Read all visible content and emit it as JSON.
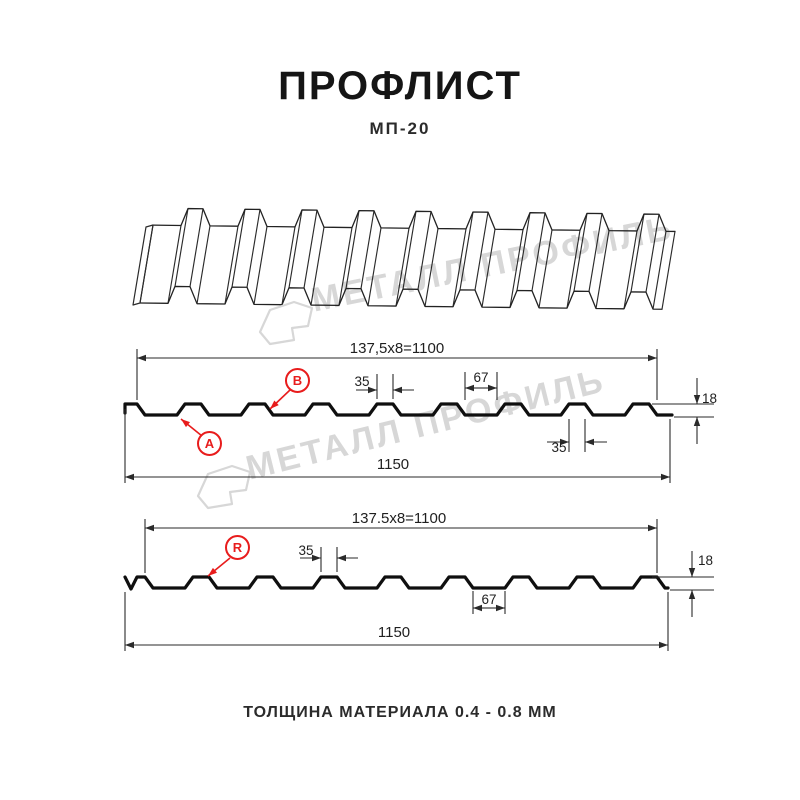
{
  "header": {
    "title": "ПРОФЛИСТ",
    "subtitle": "МП-20"
  },
  "footer": {
    "text": "ТОЛЩИНА МАТЕРИАЛА 0.4 - 0.8 ММ"
  },
  "watermark": {
    "brand": "МЕТАЛЛ ПРОФИЛЬ"
  },
  "colors": {
    "accent_red": "#e81c1c",
    "line": "#2a2a2a",
    "profile_stroke": "#0f0f0f",
    "watermark_gray": "#d7d7d7"
  },
  "profile_spec": {
    "pitch_mm": 137.5,
    "ribs_per_sheet": 8,
    "rib_top_width_mm": 35,
    "valley_width_mm": 67,
    "profile_height_mm": 18,
    "total_width_mm": 1150,
    "working_width_mm": 1100,
    "thickness_range_mm": "0.4 - 0.8"
  },
  "diagram_top": {
    "formula": "137,5x8=1100",
    "dim_rib_top": "35",
    "dim_valley": "67",
    "dim_height": "18",
    "dim_rib_bottom": "35",
    "total": "1150",
    "label_a": "A",
    "label_b": "B"
  },
  "diagram_bottom": {
    "formula": "137.5x8=1100",
    "dim_rib_top": "35",
    "dim_height": "18",
    "dim_valley": "67",
    "total": "1150",
    "label_r": "R"
  }
}
